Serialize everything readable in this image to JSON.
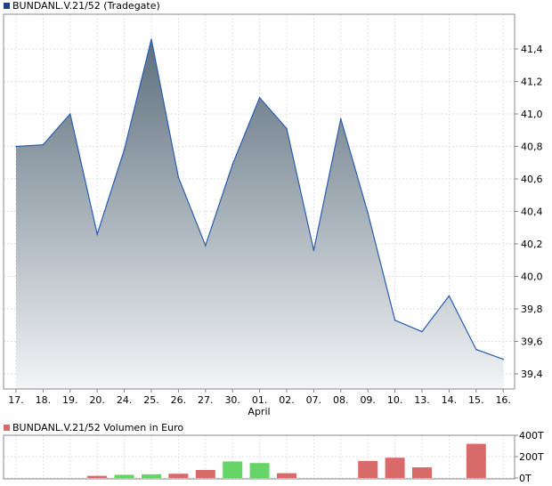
{
  "chart_data": [
    {
      "type": "area",
      "title": "BUNDANL.V.21/52 (Tradegate)",
      "legend_color": "#1f3f8f",
      "line_color": "#2a5db0",
      "fill_top_color": "#5d6f7d",
      "fill_bottom_color": "#f2f4f6",
      "grid": true,
      "x_tick_labels": [
        "17.",
        "18.",
        "19.",
        "20.",
        "24.",
        "25.",
        "26.",
        "27.",
        "30.",
        "01.",
        "02.",
        "07.",
        "08.",
        "09.",
        "10.",
        "13.",
        "14.",
        "15.",
        "16."
      ],
      "x_sublabel": "April",
      "ylim": [
        39.3,
        41.6
      ],
      "y_ticks": [
        "39,4",
        "39,6",
        "39,8",
        "40,0",
        "40,2",
        "40,4",
        "40,6",
        "40,8",
        "41,0",
        "41,2",
        "41,4"
      ],
      "y_tick_values": [
        39.4,
        39.6,
        39.8,
        40.0,
        40.2,
        40.4,
        40.6,
        40.8,
        41.0,
        41.2,
        41.4
      ],
      "x": [
        0,
        1,
        2,
        3,
        4,
        5,
        6,
        7,
        8,
        9,
        10,
        11,
        12,
        13,
        14,
        15,
        16,
        17,
        18
      ],
      "values": [
        40.8,
        40.81,
        41.0,
        40.26,
        40.78,
        41.46,
        40.61,
        40.19,
        40.69,
        41.1,
        40.91,
        40.16,
        40.97,
        40.39,
        39.73,
        39.66,
        39.88,
        39.55,
        39.49
      ]
    },
    {
      "type": "bar",
      "title": "BUNDANL.V.21/52 Volumen in Euro",
      "legend_color": "#d96a6a",
      "up_color": "#66d466",
      "down_color": "#d96a6a",
      "grid": true,
      "ylim": [
        0,
        400
      ],
      "y_ticks": [
        "0T",
        "200T",
        "400T"
      ],
      "y_tick_values": [
        0,
        200,
        400
      ],
      "values": [
        0,
        0,
        0,
        20,
        30,
        35,
        40,
        75,
        155,
        140,
        45,
        0,
        0,
        160,
        190,
        100,
        0,
        320,
        0
      ],
      "direction": [
        "none",
        "none",
        "none",
        "down",
        "up",
        "up",
        "down",
        "down",
        "up",
        "up",
        "down",
        "none",
        "none",
        "down",
        "down",
        "down",
        "none",
        "down",
        "none"
      ]
    }
  ]
}
